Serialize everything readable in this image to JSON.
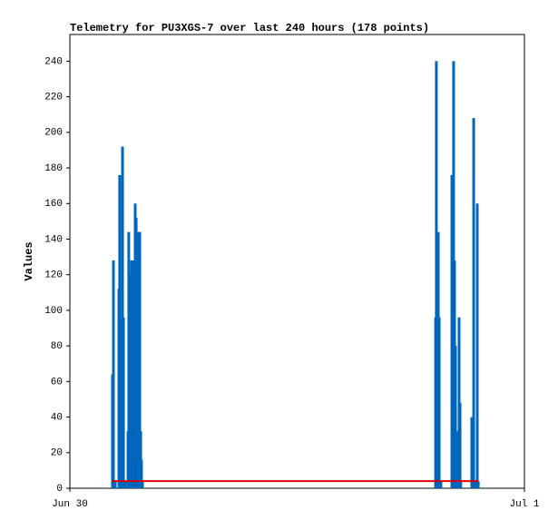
{
  "chart_data": {
    "type": "impulse",
    "title": "Telemetry for PU3XGS-7 over last 240 hours (178 points)",
    "y_label": "Values",
    "xlim": [
      0,
      24
    ],
    "xticks": [
      {
        "value": 0,
        "label": "Jun 30"
      },
      {
        "value": 24,
        "label": "Jul 1"
      }
    ],
    "ylim": [
      0,
      255
    ],
    "yticks": [
      0,
      20,
      40,
      60,
      80,
      100,
      120,
      140,
      160,
      180,
      200,
      220,
      240
    ],
    "series": [
      {
        "color": "#0066bb",
        "x": [
          2.25,
          2.3,
          2.4,
          2.59,
          2.63,
          2.68,
          2.78,
          2.83,
          2.92,
          3.07,
          3.11,
          3.16,
          3.21,
          3.26,
          3.31,
          3.35,
          3.45,
          3.5,
          3.54,
          3.59,
          3.64,
          3.69,
          3.74,
          3.78,
          3.83,
          19.31,
          19.35,
          19.45,
          19.5,
          19.59,
          20.17,
          20.26,
          20.31,
          20.36,
          20.45,
          20.55,
          20.6,
          20.64,
          21.22,
          21.32,
          21.46,
          21.51,
          21.56
        ],
        "values": [
          64,
          128,
          4,
          112,
          176,
          96,
          192,
          96,
          4,
          32,
          144,
          120,
          64,
          128,
          120,
          128,
          160,
          152,
          64,
          144,
          144,
          144,
          32,
          16,
          4,
          96,
          240,
          144,
          96,
          4,
          176,
          240,
          128,
          80,
          32,
          96,
          48,
          4,
          40,
          208,
          4,
          160,
          4
        ]
      },
      {
        "color": "#dd0000",
        "line": true,
        "x": [
          2.25,
          21.56
        ],
        "values": [
          4,
          4
        ]
      }
    ]
  }
}
